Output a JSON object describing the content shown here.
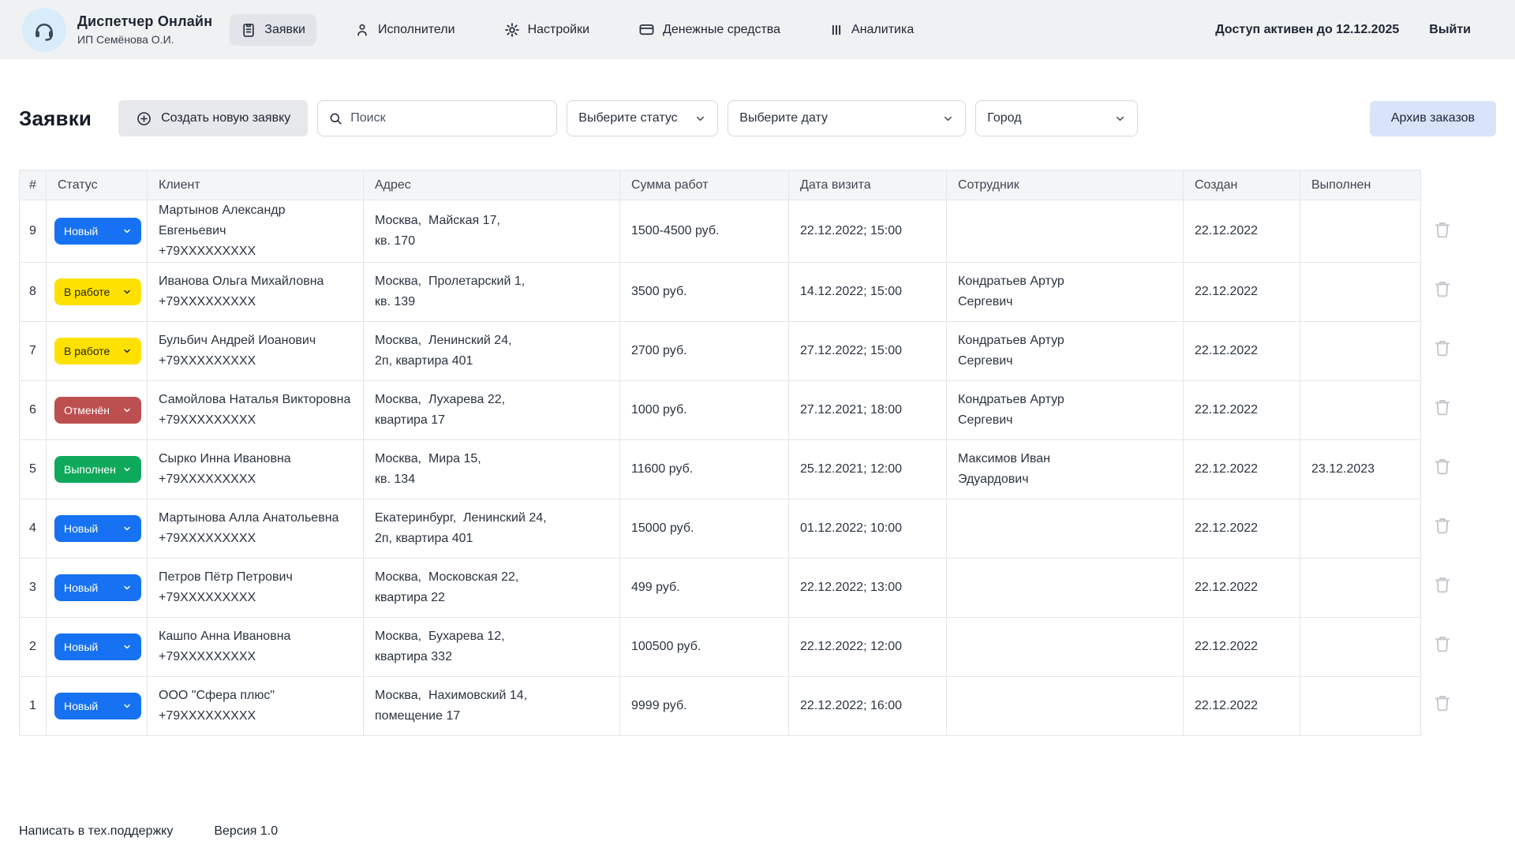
{
  "header": {
    "title": "Диспетчер Онлайн",
    "subtitle": "ИП Семёнова О.И.",
    "logo_icon": "headset-icon",
    "nav": [
      {
        "id": "orders",
        "label": "Заявки",
        "icon": "clipboard-icon",
        "active": true
      },
      {
        "id": "executors",
        "label": "Исполнители",
        "icon": "user-icon",
        "active": false
      },
      {
        "id": "settings",
        "label": "Настройки",
        "icon": "gear-icon",
        "active": false
      },
      {
        "id": "money",
        "label": "Денежные средства",
        "icon": "card-icon",
        "active": false
      },
      {
        "id": "analytics",
        "label": "Аналитика",
        "icon": "chart-icon",
        "active": false
      }
    ],
    "access_text": "Доступ активен до 12.12.2025",
    "logout_label": "Выйти"
  },
  "toolbar": {
    "page_title": "Заявки",
    "create_button": "Создать новую заявку",
    "create_icon": "plus-circle-icon",
    "search_placeholder": "Поиск",
    "search_icon": "search-icon",
    "status_select": "Выберите статус",
    "date_select": "Выберите дату",
    "city_select": "Город",
    "select_icon": "chevron-down-icon",
    "archive_button": "Архив заказов"
  },
  "statuses": {
    "new": {
      "label": "Новый",
      "bg": "#1672F2",
      "fg": "#FFFFFF"
    },
    "in_progress": {
      "label": "В работе",
      "bg": "#FFE100",
      "fg": "#1D2634"
    },
    "cancelled": {
      "label": "Отменён",
      "bg": "#BC4F4F",
      "fg": "#FFFFFF"
    },
    "done": {
      "label": "Выполнен",
      "bg": "#0FA95C",
      "fg": "#FFFFFF"
    }
  },
  "table": {
    "columns": [
      "#",
      "Статус",
      "Клиент",
      "Адрес",
      "Сумма работ",
      "Дата визита",
      "Сотрудник",
      "Создан",
      "Выполнен"
    ],
    "row_action_icon": "trash-icon",
    "rows": [
      {
        "num": "9",
        "status": "new",
        "client_name": "Мартынов Александр Евгеньевич",
        "client_phone": "+79XXXXXXXXX",
        "address": "Москва,  Майская 17,\nкв. 170",
        "sum": "1500-4500 руб.",
        "visit": "22.12.2022; 15:00",
        "employee": "",
        "created": "22.12.2022",
        "done": ""
      },
      {
        "num": "8",
        "status": "in_progress",
        "client_name": "Иванова Ольга Михайловна",
        "client_phone": "+79XXXXXXXXX",
        "address": "Москва,  Пролетарский 1,\nкв. 139",
        "sum": "3500 руб.",
        "visit": "14.12.2022; 15:00",
        "employee": "Кондратьев Артур\nСергевич",
        "created": "22.12.2022",
        "done": ""
      },
      {
        "num": "7",
        "status": "in_progress",
        "client_name": "Бульбич Андрей Иоанович",
        "client_phone": "+79XXXXXXXXX",
        "address": "Москва,  Ленинский 24,\n2п, квартира 401",
        "sum": "2700 руб.",
        "visit": "27.12.2022; 15:00",
        "employee": "Кондратьев Артур\nСергевич",
        "created": "22.12.2022",
        "done": ""
      },
      {
        "num": "6",
        "status": "cancelled",
        "client_name": "Самойлова Наталья Викторовна",
        "client_phone": "+79XXXXXXXXX",
        "address": "Москва,  Лухарева 22,\nквартира 17",
        "sum": "1000 руб.",
        "visit": "27.12.2021; 18:00",
        "employee": "Кондратьев Артур\nСергевич",
        "created": "22.12.2022",
        "done": ""
      },
      {
        "num": "5",
        "status": "done",
        "client_name": "Сырко Инна Ивановна",
        "client_phone": "+79XXXXXXXXX",
        "address": "Москва,  Мира 15,\nкв. 134",
        "sum": "11600 руб.",
        "visit": "25.12.2021; 12:00",
        "employee": "Максимов Иван\nЭдуардович",
        "created": "22.12.2022",
        "done": "23.12.2023"
      },
      {
        "num": "4",
        "status": "new",
        "client_name": "Мартынова Алла Анатольевна",
        "client_phone": "+79XXXXXXXXX",
        "address": "Екатеринбург,  Ленинский 24,\n2п, квартира 401",
        "sum": "15000 руб.",
        "visit": "01.12.2022; 10:00",
        "employee": "",
        "created": "22.12.2022",
        "done": ""
      },
      {
        "num": "3",
        "status": "new",
        "client_name": "Петров Пётр Петрович",
        "client_phone": "+79XXXXXXXXX",
        "address": "Москва,  Московская 22,\nквартира 22",
        "sum": "499 руб.",
        "visit": "22.12.2022; 13:00",
        "employee": "",
        "created": "22.12.2022",
        "done": ""
      },
      {
        "num": "2",
        "status": "new",
        "client_name": "Кашпо Анна Ивановна",
        "client_phone": "+79XXXXXXXXX",
        "address": "Москва,  Бухарева 12,\nквартира 332",
        "sum": "100500 руб.",
        "visit": "22.12.2022; 12:00",
        "employee": "",
        "created": "22.12.2022",
        "done": ""
      },
      {
        "num": "1",
        "status": "new",
        "client_name": "ООО \"Сфера плюс\"",
        "client_phone": "+79XXXXXXXXX",
        "address": "Москва,  Нахимовский 14,\nпомещение 17",
        "sum": "9999 руб.",
        "visit": "22.12.2022; 16:00",
        "employee": "",
        "created": "22.12.2022",
        "done": ""
      }
    ]
  },
  "footer": {
    "support": "Написать в тех.поддержку",
    "version": "Версия 1.0"
  }
}
